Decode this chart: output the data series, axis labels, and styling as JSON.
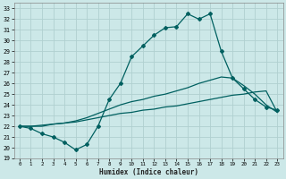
{
  "xlabel": "Humidex (Indice chaleur)",
  "bg_color": "#cce8e8",
  "grid_color": "#b0d0d0",
  "line_color": "#006060",
  "xlim": [
    -0.5,
    23.5
  ],
  "ylim": [
    19,
    33.5
  ],
  "xticks": [
    0,
    1,
    2,
    3,
    4,
    5,
    6,
    7,
    8,
    9,
    10,
    11,
    12,
    13,
    14,
    15,
    16,
    17,
    18,
    19,
    20,
    21,
    22,
    23
  ],
  "yticks": [
    19,
    20,
    21,
    22,
    23,
    24,
    25,
    26,
    27,
    28,
    29,
    30,
    31,
    32,
    33
  ],
  "line1_x": [
    0,
    1,
    2,
    3,
    4,
    5,
    6,
    7,
    8,
    9,
    10,
    11,
    12,
    13,
    14,
    15,
    16,
    17,
    18,
    19,
    20,
    21,
    22,
    23
  ],
  "line1_y": [
    22.0,
    21.8,
    21.3,
    21.0,
    20.5,
    19.8,
    20.3,
    22.0,
    24.5,
    26.0,
    28.5,
    29.5,
    30.5,
    31.2,
    31.3,
    32.5,
    32.0,
    32.5,
    29.0,
    26.5,
    25.5,
    24.5,
    23.8,
    23.5
  ],
  "line2_x": [
    0,
    1,
    2,
    3,
    4,
    5,
    6,
    7,
    8,
    9,
    10,
    11,
    12,
    13,
    14,
    15,
    16,
    17,
    18,
    19,
    20,
    21,
    22,
    23
  ],
  "line2_y": [
    22.0,
    22.0,
    22.0,
    22.2,
    22.3,
    22.5,
    22.8,
    23.2,
    23.6,
    24.0,
    24.3,
    24.5,
    24.8,
    25.0,
    25.3,
    25.6,
    26.0,
    26.3,
    26.6,
    26.5,
    25.8,
    25.0,
    24.0,
    23.3
  ],
  "line3_x": [
    0,
    1,
    2,
    3,
    4,
    5,
    6,
    7,
    8,
    9,
    10,
    11,
    12,
    13,
    14,
    15,
    16,
    17,
    18,
    19,
    20,
    21,
    22,
    23
  ],
  "line3_y": [
    22.0,
    22.0,
    22.1,
    22.2,
    22.3,
    22.4,
    22.6,
    22.8,
    23.0,
    23.2,
    23.3,
    23.5,
    23.6,
    23.8,
    23.9,
    24.1,
    24.3,
    24.5,
    24.7,
    24.9,
    25.0,
    25.2,
    25.3,
    23.3
  ],
  "marker": "D",
  "markersize": 2.0,
  "linewidth": 0.9
}
